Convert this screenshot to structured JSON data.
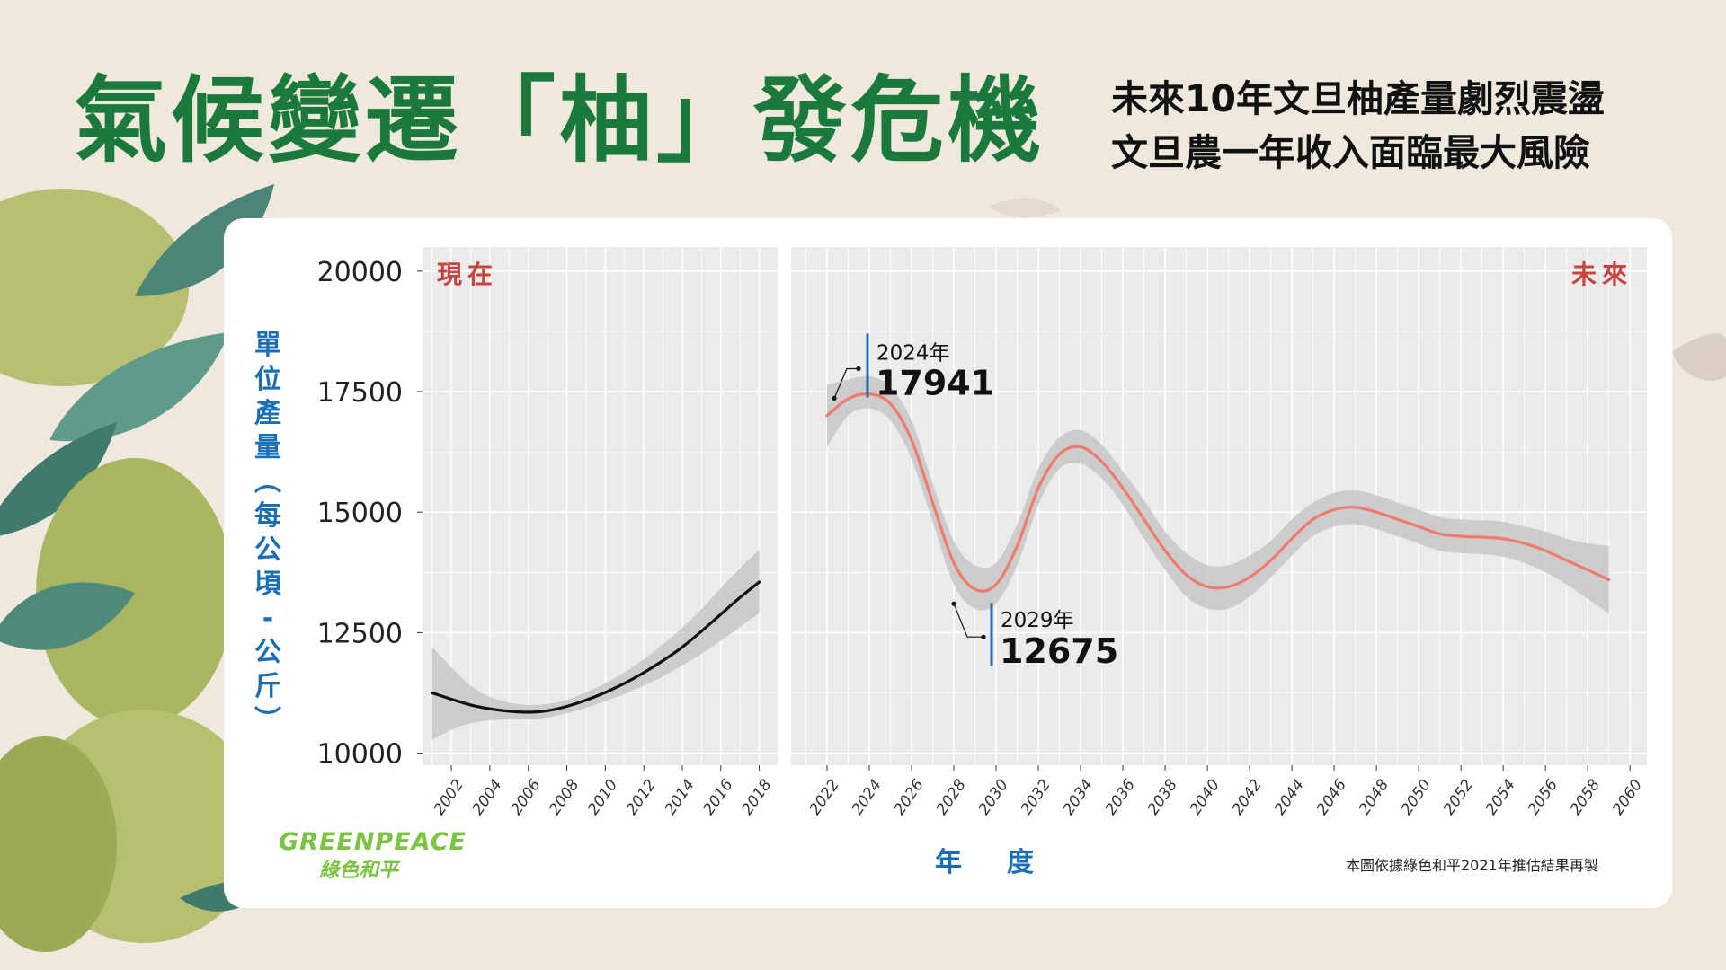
{
  "title": "氣候變遷「柚」發危機",
  "subtitle_lines": [
    "未來10年文旦柚產量劇烈震盪",
    "文旦農一年收入面臨最大風險"
  ],
  "source_note": "本圖依據綠色和平2021年推估結果再製",
  "logo": {
    "en": "GREENPEACE",
    "zh": "綠色和平"
  },
  "colors": {
    "title": "#1b7a3b",
    "label_blue": "#1a6eb5",
    "panel_label_red": "#c8453f",
    "present_line": "#111111",
    "future_line": "#f07a6c",
    "ribbon": "#c7c7c7",
    "panel_bg": "#ebebeb",
    "logo_green": "#7cc243"
  },
  "chart_data": {
    "type": "line",
    "ylabel": [
      "單",
      "位",
      "產",
      "量",
      "︵",
      "每",
      "公",
      "頃",
      "-",
      "公",
      "斤",
      "︶"
    ],
    "xlabel": "年度",
    "y_ticks": [
      "20000",
      "17500",
      "15000",
      "12500",
      "10000"
    ],
    "ylim": [
      9750,
      20500
    ],
    "grid": true,
    "panels": [
      {
        "label": "現在",
        "xlim": [
          2000.5,
          2019
        ],
        "x_ticks": [
          "2002",
          "2004",
          "2006",
          "2008",
          "2010",
          "2012",
          "2014",
          "2016",
          "2018"
        ],
        "series": [
          {
            "x": [
              2001,
              2002,
              2003,
              2004,
              2005,
              2006,
              2007,
              2008,
              2009,
              2010,
              2011,
              2012,
              2013,
              2014,
              2015,
              2016,
              2017,
              2018
            ],
            "y": [
              11250,
              11120,
              11000,
              10920,
              10870,
              10850,
              10880,
              10970,
              11100,
              11260,
              11450,
              11670,
              11920,
              12200,
              12530,
              12880,
              13230,
              13550
            ],
            "lower": [
              10280,
              10480,
              10620,
              10680,
              10700,
              10700,
              10740,
              10830,
              10940,
              11080,
              11230,
              11400,
              11600,
              11820,
              12060,
              12330,
              12620,
              12900
            ],
            "upper": [
              12200,
              11780,
              11400,
              11170,
              11050,
              11000,
              11020,
              11110,
              11260,
              11450,
              11680,
              11950,
              12260,
              12600,
              12990,
              13420,
              13840,
              14220
            ]
          }
        ]
      },
      {
        "label": "未來",
        "xlim": [
          2020.3,
          2060.8
        ],
        "x_ticks": [
          "2022",
          "2024",
          "2026",
          "2028",
          "2030",
          "2032",
          "2034",
          "2036",
          "2038",
          "2040",
          "2042",
          "2044",
          "2046",
          "2048",
          "2050",
          "2052",
          "2054",
          "2056",
          "2058",
          "2060"
        ],
        "series": [
          {
            "x": [
              2022,
              2023,
              2024,
              2025,
              2026,
              2027,
              2028,
              2029,
              2030,
              2031,
              2032,
              2033,
              2034,
              2035,
              2036,
              2037,
              2038,
              2039,
              2040,
              2041,
              2042,
              2043,
              2044,
              2045,
              2046,
              2047,
              2048,
              2049,
              2050,
              2051,
              2052,
              2053,
              2054,
              2055,
              2056,
              2057,
              2058,
              2059
            ],
            "y": [
              17000,
              17350,
              17450,
              17250,
              16500,
              15200,
              13950,
              13400,
              13500,
              14300,
              15500,
              16200,
              16350,
              16050,
              15500,
              14850,
              14200,
              13700,
              13450,
              13450,
              13650,
              14000,
              14450,
              14850,
              15050,
              15100,
              15000,
              14850,
              14700,
              14550,
              14500,
              14480,
              14450,
              14350,
              14200,
              14000,
              13800,
              13600
            ],
            "lower": [
              16350,
              17000,
              17150,
              16900,
              16100,
              14800,
              13500,
              13000,
              13100,
              13900,
              15150,
              15900,
              16000,
              15700,
              15150,
              14450,
              13800,
              13250,
              13000,
              13000,
              13250,
              13650,
              14100,
              14500,
              14700,
              14750,
              14650,
              14500,
              14350,
              14200,
              14150,
              14130,
              14080,
              13950,
              13750,
              13500,
              13200,
              12900
            ],
            "upper": [
              17650,
              17750,
              17820,
              17600,
              16900,
              15600,
              14400,
              13900,
              13950,
              14750,
              15900,
              16550,
              16700,
              16400,
              15850,
              15250,
              14600,
              14150,
              13900,
              13900,
              14100,
              14400,
              14850,
              15200,
              15400,
              15450,
              15350,
              15200,
              15050,
              14900,
              14850,
              14830,
              14800,
              14700,
              14600,
              14450,
              14350,
              14300
            ]
          }
        ]
      }
    ],
    "annotations": [
      {
        "year_label": "2024年",
        "value": "17941",
        "x": 2024,
        "y": 18050
      },
      {
        "year_label": "2029年",
        "value": "12675",
        "x": 2028,
        "y": 13100
      }
    ]
  }
}
